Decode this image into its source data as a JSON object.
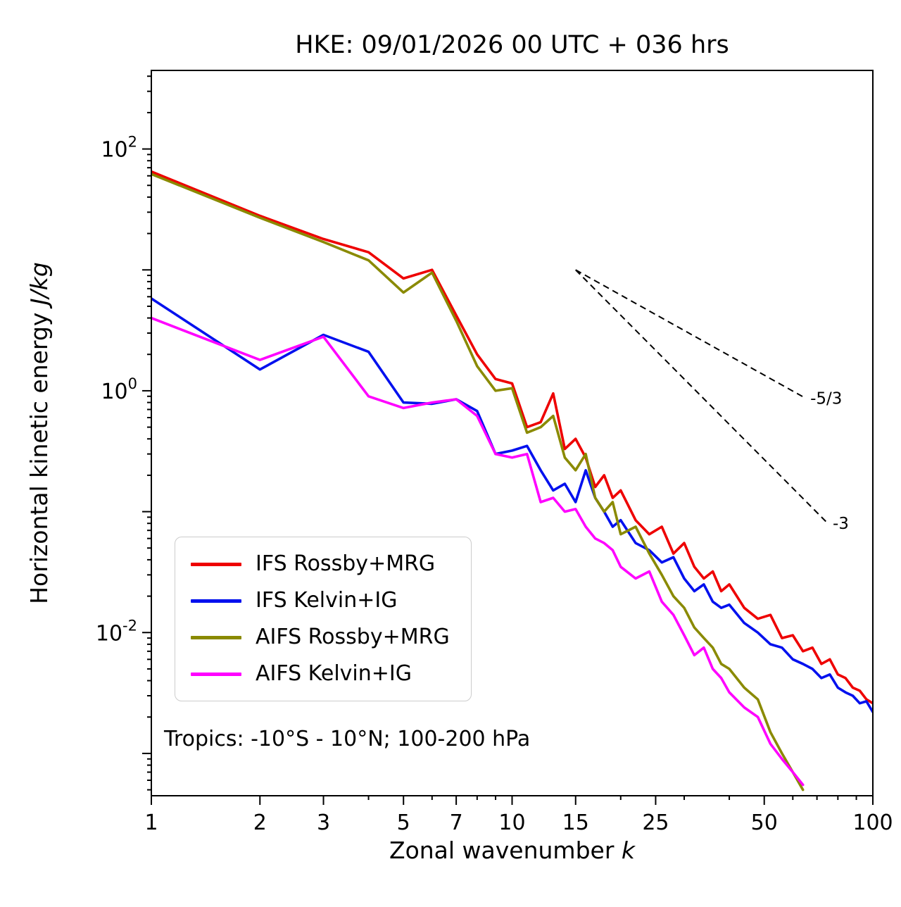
{
  "figure": {
    "title": "HKE: 09/01/2026 00 UTC + 036 hrs",
    "xlabel_text": "Zonal wavenumber ",
    "xlabel_math": "k",
    "ylabel_text": "Horizontal kinetic energy ",
    "ylabel_math": "J/kg",
    "annotation": "Tropics: -10°S - 10°N; 100-200 hPa"
  },
  "chart_data": {
    "type": "line",
    "title": "HKE: 09/01/2026 00 UTC + 036 hrs",
    "xlabel": "Zonal wavenumber k",
    "ylabel": "Horizontal kinetic energy J/kg",
    "xscale": "log",
    "yscale": "log",
    "xlim": [
      1,
      100
    ],
    "ylim_log10": [
      -3.35,
      2.65
    ],
    "xticks": [
      1,
      2,
      3,
      5,
      7,
      10,
      15,
      25,
      50,
      100
    ],
    "xtick_labels": [
      "1",
      "2",
      "3",
      "5",
      "7",
      "10",
      "15",
      "25",
      "50",
      "100"
    ],
    "ytick_exponents_all": [
      2,
      1,
      0,
      -1,
      -2,
      -3
    ],
    "ytick_exponents_labeled": [
      2,
      0,
      -2
    ],
    "grid": false,
    "legend_position": "lower-left-inside",
    "annotation": "Tropics: -10°S - 10°N; 100-200 hPa",
    "x": [
      1,
      2,
      3,
      4,
      5,
      6,
      7,
      8,
      9,
      10,
      11,
      12,
      13,
      14,
      15,
      16,
      17,
      18,
      19,
      20,
      22,
      24,
      26,
      28,
      30,
      32,
      34,
      36,
      38,
      40,
      44,
      48,
      52,
      56,
      60,
      64,
      68,
      72,
      76,
      80,
      84,
      88,
      92,
      96,
      100
    ],
    "series": [
      {
        "name": "IFS Rossby+MRG",
        "color": "#ee0000",
        "values": [
          65,
          28,
          18,
          14,
          8.5,
          10,
          4.2,
          2.0,
          1.25,
          1.15,
          0.5,
          0.55,
          0.95,
          0.33,
          0.4,
          0.28,
          0.16,
          0.2,
          0.13,
          0.15,
          0.085,
          0.065,
          0.075,
          0.045,
          0.055,
          0.035,
          0.028,
          0.032,
          0.022,
          0.025,
          0.016,
          0.013,
          0.014,
          0.009,
          0.0095,
          0.007,
          0.0075,
          0.0055,
          0.006,
          0.0045,
          0.0042,
          0.0035,
          0.0033,
          0.0028,
          0.0026
        ]
      },
      {
        "name": "IFS Kelvin+IG",
        "color": "#0010ee",
        "values": [
          5.8,
          1.5,
          2.9,
          2.1,
          0.8,
          0.78,
          0.85,
          0.68,
          0.3,
          0.32,
          0.35,
          0.22,
          0.15,
          0.17,
          0.12,
          0.22,
          0.13,
          0.1,
          0.075,
          0.085,
          0.055,
          0.048,
          0.038,
          0.042,
          0.028,
          0.022,
          0.025,
          0.018,
          0.016,
          0.017,
          0.012,
          0.01,
          0.008,
          0.0075,
          0.006,
          0.0055,
          0.005,
          0.0042,
          0.0045,
          0.0035,
          0.0032,
          0.003,
          0.0026,
          0.0027,
          0.0022
        ]
      },
      {
        "name": "AIFS Rossby+MRG",
        "color": "#8a8a00",
        "values": [
          62,
          27,
          17,
          12,
          6.5,
          9.5,
          3.8,
          1.6,
          1.0,
          1.05,
          0.45,
          0.5,
          0.62,
          0.28,
          0.22,
          0.3,
          0.13,
          0.1,
          0.12,
          0.065,
          0.075,
          0.045,
          0.03,
          0.02,
          0.016,
          0.011,
          0.009,
          0.0075,
          0.0055,
          0.005,
          0.0035,
          0.0028,
          0.0015,
          0.001,
          0.0007,
          0.0005,
          null,
          null,
          null,
          null,
          null,
          null,
          null,
          null,
          null
        ]
      },
      {
        "name": "AIFS Kelvin+IG",
        "color": "#ff00ff",
        "values": [
          4.0,
          1.8,
          2.8,
          0.9,
          0.72,
          0.8,
          0.85,
          0.62,
          0.3,
          0.28,
          0.3,
          0.12,
          0.13,
          0.1,
          0.105,
          0.075,
          0.06,
          0.055,
          0.048,
          0.035,
          0.028,
          0.032,
          0.018,
          0.014,
          0.0095,
          0.0065,
          0.0075,
          0.005,
          0.0042,
          0.0032,
          0.0024,
          0.002,
          0.0012,
          0.0009,
          0.0007,
          0.00055,
          null,
          null,
          null,
          null,
          null,
          null,
          null,
          null,
          null
        ]
      }
    ],
    "reference_lines": [
      {
        "label": "-5/3",
        "x": [
          15,
          65
        ],
        "y": [
          10,
          0.87
        ],
        "style": "dashed",
        "color": "#000000"
      },
      {
        "label": "-3",
        "x": [
          15,
          75
        ],
        "y": [
          10,
          0.08
        ],
        "style": "dashed",
        "color": "#000000"
      }
    ]
  }
}
